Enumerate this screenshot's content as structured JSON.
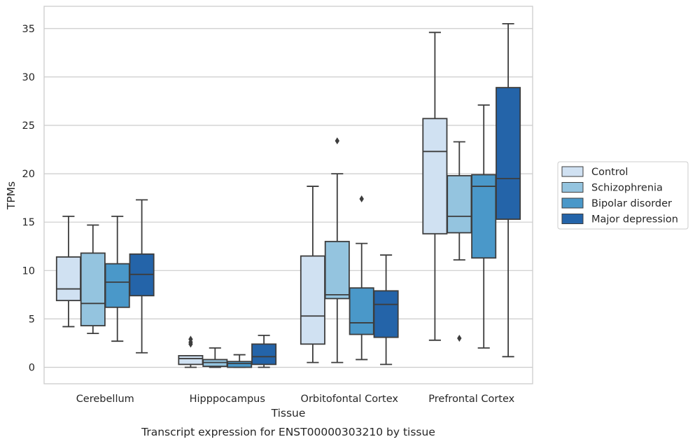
{
  "chart_data": {
    "type": "box",
    "title": "",
    "caption": "Transcript expression for ENST00000303210 by tissue",
    "xlabel": "Tissue",
    "ylabel": "TPMs",
    "ylim": [
      -1.7,
      37.3
    ],
    "yticks": [
      0,
      5,
      10,
      15,
      20,
      25,
      30,
      35
    ],
    "grid": "horizontal",
    "legend_position": "right",
    "categories": [
      "Cerebellum",
      "Hipppocampus",
      "Orbitofontal Cortex",
      "Prefrontal Cortex"
    ],
    "series": [
      {
        "name": "Control",
        "color": "#d0e1f2",
        "boxes": [
          {
            "whisker_low": 4.2,
            "q1": 6.9,
            "median": 8.1,
            "q3": 11.4,
            "whisker_high": 15.6,
            "outliers": []
          },
          {
            "whisker_low": 0.0,
            "q1": 0.3,
            "median": 0.9,
            "q3": 1.2,
            "whisker_high": 1.2,
            "outliers": [
              2.4,
              2.6,
              2.9
            ]
          },
          {
            "whisker_low": 0.5,
            "q1": 2.4,
            "median": 5.3,
            "q3": 11.5,
            "whisker_high": 18.7,
            "outliers": []
          },
          {
            "whisker_low": 2.8,
            "q1": 13.8,
            "median": 22.3,
            "q3": 25.7,
            "whisker_high": 34.6,
            "outliers": []
          }
        ]
      },
      {
        "name": "Schizophrenia",
        "color": "#94c4df",
        "boxes": [
          {
            "whisker_low": 3.5,
            "q1": 4.3,
            "median": 6.6,
            "q3": 11.8,
            "whisker_high": 14.7,
            "outliers": []
          },
          {
            "whisker_low": 0.0,
            "q1": 0.1,
            "median": 0.5,
            "q3": 0.8,
            "whisker_high": 2.0,
            "outliers": []
          },
          {
            "whisker_low": 0.5,
            "q1": 7.1,
            "median": 7.5,
            "q3": 13.0,
            "whisker_high": 20.0,
            "outliers": [
              23.4
            ]
          },
          {
            "whisker_low": 11.1,
            "q1": 13.9,
            "median": 15.6,
            "q3": 19.8,
            "whisker_high": 23.3,
            "outliers": [
              3.0
            ]
          }
        ]
      },
      {
        "name": "Bipolar disorder",
        "color": "#4a98c9",
        "boxes": [
          {
            "whisker_low": 2.7,
            "q1": 6.2,
            "median": 8.8,
            "q3": 10.7,
            "whisker_high": 15.6,
            "outliers": []
          },
          {
            "whisker_low": 0.0,
            "q1": 0.0,
            "median": 0.4,
            "q3": 0.6,
            "whisker_high": 1.3,
            "outliers": []
          },
          {
            "whisker_low": 0.8,
            "q1": 3.4,
            "median": 4.6,
            "q3": 8.2,
            "whisker_high": 12.8,
            "outliers": [
              17.4
            ]
          },
          {
            "whisker_low": 2.0,
            "q1": 11.3,
            "median": 18.7,
            "q3": 19.9,
            "whisker_high": 27.1,
            "outliers": []
          }
        ]
      },
      {
        "name": "Major depression",
        "color": "#2464a9",
        "boxes": [
          {
            "whisker_low": 1.5,
            "q1": 7.4,
            "median": 9.6,
            "q3": 11.7,
            "whisker_high": 17.3,
            "outliers": []
          },
          {
            "whisker_low": 0.0,
            "q1": 0.3,
            "median": 1.1,
            "q3": 2.4,
            "whisker_high": 3.3,
            "outliers": []
          },
          {
            "whisker_low": 0.3,
            "q1": 3.1,
            "median": 6.5,
            "q3": 7.9,
            "whisker_high": 11.6,
            "outliers": []
          },
          {
            "whisker_low": 1.1,
            "q1": 15.3,
            "median": 19.5,
            "q3": 28.9,
            "whisker_high": 35.5,
            "outliers": []
          }
        ]
      }
    ]
  }
}
